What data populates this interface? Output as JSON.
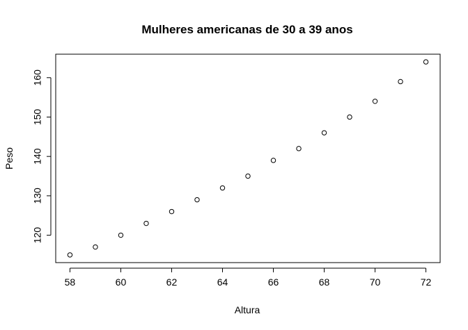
{
  "chart_data": {
    "type": "scatter",
    "title": "Mulheres americanas de 30 a 39 anos",
    "xlabel": "Altura",
    "ylabel": "Peso",
    "x": [
      58,
      59,
      60,
      61,
      62,
      63,
      64,
      65,
      66,
      67,
      68,
      69,
      70,
      71,
      72
    ],
    "y": [
      115,
      117,
      120,
      123,
      126,
      129,
      132,
      135,
      139,
      142,
      146,
      150,
      154,
      159,
      164
    ],
    "xlim": [
      57.44,
      72.56
    ],
    "ylim": [
      113.04,
      165.96
    ],
    "xticks": [
      58,
      60,
      62,
      64,
      66,
      68,
      70,
      72
    ],
    "yticks": [
      120,
      130,
      140,
      150,
      160
    ],
    "grid": false,
    "marker": "open-circle"
  }
}
